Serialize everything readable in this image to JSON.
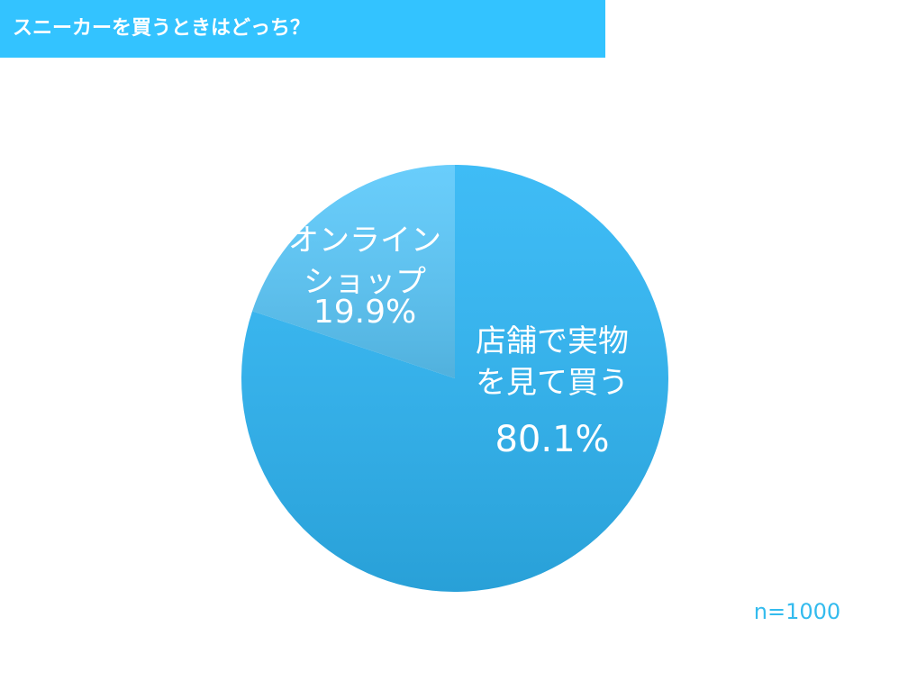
{
  "chart_data": {
    "type": "pie",
    "title": "スニーカーを買うときはどっち？",
    "categories": [
      "店舗で実物\nを見て買う",
      "オンライン\nショップ"
    ],
    "values": [
      80.1,
      19.9
    ],
    "value_labels": [
      "80.1%",
      "19.9%"
    ],
    "colors": [
      "#2eb6f5",
      "#5cc9fb"
    ],
    "note": "n=1000"
  }
}
